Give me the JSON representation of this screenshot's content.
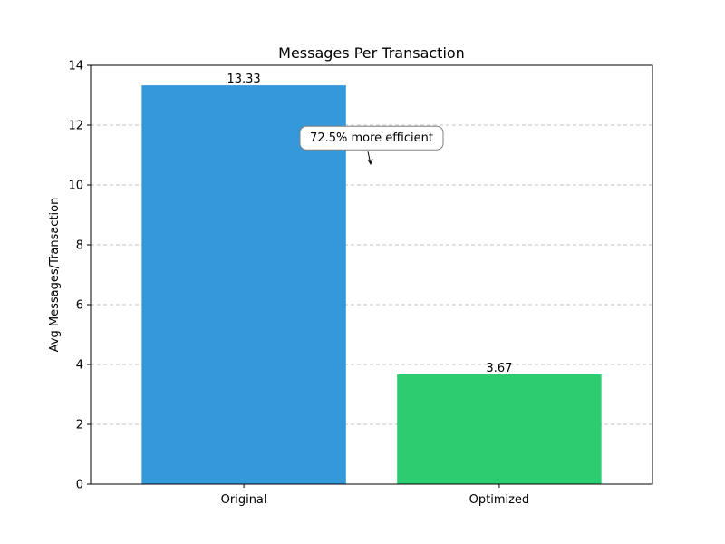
{
  "chart_data": {
    "type": "bar",
    "title": "Messages Per Transaction",
    "xlabel": "",
    "ylabel": "Avg Messages/Transaction",
    "categories": [
      "Original",
      "Optimized"
    ],
    "values": [
      13.33,
      3.67
    ],
    "data_labels": [
      "13.33",
      "3.67"
    ],
    "colors": [
      "#3498db",
      "#2ecc71"
    ],
    "ylim": [
      0,
      14
    ],
    "yticks": [
      0,
      2,
      4,
      6,
      8,
      10,
      12,
      14
    ],
    "grid": {
      "axis": "y",
      "style": "dashed",
      "color": "#c0c0c0"
    },
    "annotation": {
      "text": "72.5% more efficient",
      "x": 0.5,
      "y": 11.6,
      "arrow_to": {
        "x": 0.5,
        "y": 10.7
      }
    }
  }
}
